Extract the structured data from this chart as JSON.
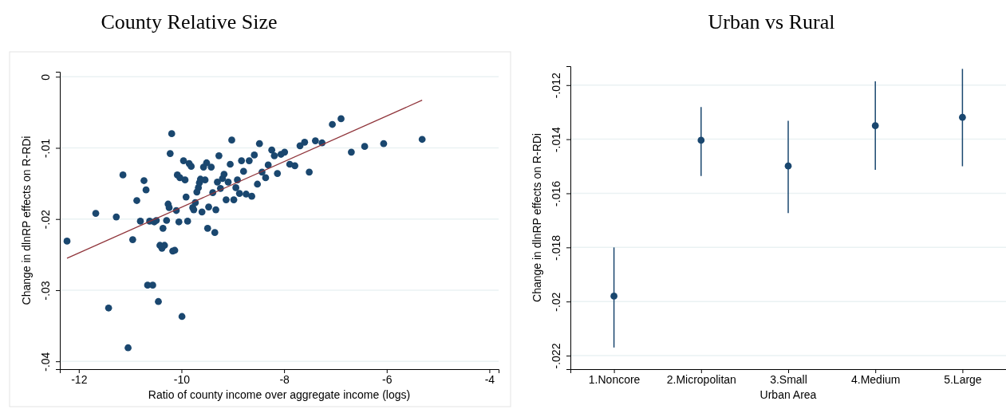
{
  "chart_data": [
    {
      "type": "scatter",
      "title": "County Relative Size",
      "xlabel": "Ratio of county income over aggregate income (logs)",
      "ylabel": "Change in dlnRP effects on R-RDi",
      "xlim": [
        -12.37,
        -3.82
      ],
      "ylim": [
        -0.0411,
        0.0007
      ],
      "xticks": [
        -12,
        -10,
        -8,
        -6,
        -4
      ],
      "yticks": [
        {
          "value": 0,
          "label": "0"
        },
        {
          "value": -0.01,
          "label": "-.01"
        },
        {
          "value": -0.02,
          "label": "-.02"
        },
        {
          "value": -0.03,
          "label": "-.03"
        },
        {
          "value": -0.04,
          "label": "-.04"
        }
      ],
      "grid": "y",
      "series": [
        {
          "marker": "circle",
          "color": "#1a476f",
          "x": [
            -12.23,
            -11.67,
            -11.27,
            -11.14,
            -11.42,
            -11.04,
            -10.95,
            -10.87,
            -10.8,
            -10.73,
            -10.69,
            -10.66,
            -10.56,
            -10.62,
            -10.53,
            -10.49,
            -10.45,
            -10.42,
            -10.38,
            -10.33,
            -10.36,
            -10.29,
            -10.26,
            -10.24,
            -10.22,
            -10.19,
            -10.17,
            -10.13,
            -10.1,
            -10.08,
            -10.05,
            -10.03,
            -9.99,
            -9.96,
            -9.93,
            -9.91,
            -9.88,
            -9.85,
            -9.81,
            -9.78,
            -9.76,
            -9.73,
            -9.7,
            -9.67,
            -9.65,
            -9.63,
            -9.6,
            -9.57,
            -9.54,
            -9.51,
            -9.49,
            -9.47,
            -9.42,
            -9.39,
            -9.35,
            -9.33,
            -9.3,
            -9.27,
            -9.24,
            -9.2,
            -9.17,
            -9.13,
            -9.09,
            -9.05,
            -9.02,
            -8.98,
            -8.94,
            -8.91,
            -8.87,
            -8.83,
            -8.79,
            -8.74,
            -8.68,
            -8.63,
            -8.58,
            -8.52,
            -8.48,
            -8.43,
            -8.36,
            -8.31,
            -8.24,
            -8.19,
            -8.13,
            -8.06,
            -7.99,
            -7.89,
            -7.79,
            -7.69,
            -7.6,
            -7.51,
            -7.39,
            -7.26,
            -7.06,
            -6.89,
            -6.69,
            -6.43,
            -6.06,
            -5.31
          ],
          "values": [
            -0.0231,
            -0.0192,
            -0.0197,
            -0.0138,
            -0.0325,
            -0.0381,
            -0.0229,
            -0.0174,
            -0.0203,
            -0.0146,
            -0.0159,
            -0.0293,
            -0.0293,
            -0.0203,
            -0.0204,
            -0.0202,
            -0.0316,
            -0.0237,
            -0.0241,
            -0.0237,
            -0.0213,
            -0.0202,
            -0.0179,
            -0.0184,
            -0.0108,
            -0.008,
            -0.0245,
            -0.0244,
            -0.0188,
            -0.0138,
            -0.0204,
            -0.0142,
            -0.0337,
            -0.0118,
            -0.0145,
            -0.0169,
            -0.0203,
            -0.0122,
            -0.0126,
            -0.0184,
            -0.0187,
            -0.0177,
            -0.0162,
            -0.0156,
            -0.0149,
            -0.0144,
            -0.019,
            -0.0127,
            -0.0145,
            -0.0121,
            -0.0213,
            -0.0183,
            -0.0127,
            -0.0163,
            -0.0219,
            -0.0187,
            -0.0148,
            -0.0111,
            -0.0157,
            -0.0143,
            -0.0137,
            -0.0173,
            -0.0148,
            -0.0123,
            -0.0089,
            -0.0173,
            -0.0156,
            -0.0145,
            -0.0164,
            -0.0118,
            -0.0133,
            -0.0165,
            -0.0118,
            -0.0168,
            -0.011,
            -0.0151,
            -0.0094,
            -0.0134,
            -0.0142,
            -0.0124,
            -0.0103,
            -0.0111,
            -0.0136,
            -0.0109,
            -0.0106,
            -0.0123,
            -0.0125,
            -0.0097,
            -0.0092,
            -0.0134,
            -0.009,
            -0.0093,
            -0.0067,
            -0.0059,
            -0.0106,
            -0.0098,
            -0.0094,
            -0.0088
          ]
        },
        {
          "type": "line",
          "marker": "none",
          "color": "#90353b",
          "x": [
            -12.23,
            -5.31
          ],
          "values": [
            -0.0255,
            -0.0033
          ]
        }
      ]
    },
    {
      "type": "scatter",
      "title": "Urban vs Rural",
      "xlabel": "Urban Area",
      "ylabel": "Change in dlnRP effects on R-RDi",
      "categories": [
        "1.Noncore",
        "2.Micropolitan",
        "3.Small",
        "4.Medium",
        "5.Large"
      ],
      "ylim": [
        -0.0225,
        -0.0113
      ],
      "yticks": [
        {
          "value": -0.012,
          "label": "-.012"
        },
        {
          "value": -0.014,
          "label": "-.014"
        },
        {
          "value": -0.016,
          "label": "-.016"
        },
        {
          "value": -0.018,
          "label": "-.018"
        },
        {
          "value": -0.02,
          "label": "-.02"
        },
        {
          "value": -0.022,
          "label": "-.022"
        }
      ],
      "grid": "y",
      "series": [
        {
          "marker": "circle",
          "color": "#1a476f",
          "values": [
            -0.0198,
            -0.01404,
            -0.01499,
            -0.0135,
            -0.01319
          ],
          "errors": [
            [
              -0.0217,
              -0.018
            ],
            [
              -0.01536,
              -0.01281
            ],
            [
              -0.01673,
              -0.01332
            ],
            [
              -0.01513,
              -0.01186
            ],
            [
              -0.015,
              -0.0114
            ]
          ]
        }
      ]
    }
  ]
}
